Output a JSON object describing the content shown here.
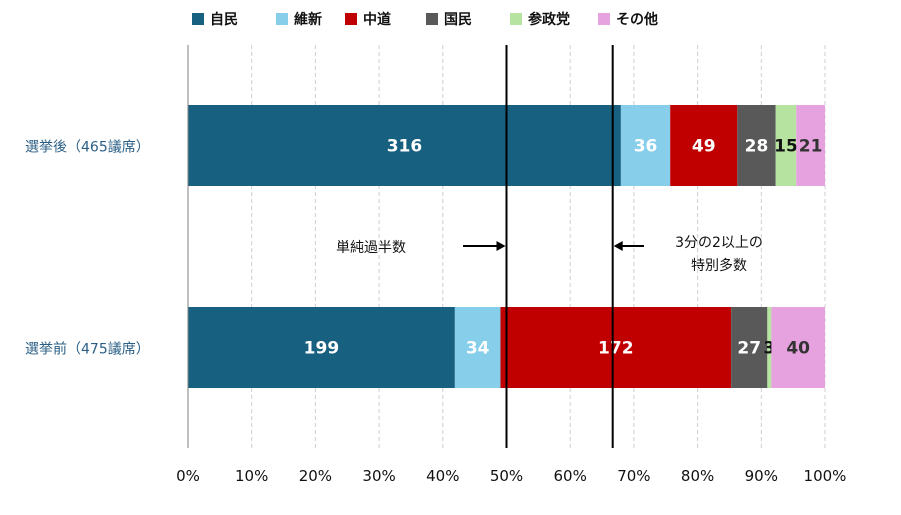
{
  "chart_data": {
    "type": "bar",
    "orientation": "horizontal",
    "stacked": true,
    "normalized": true,
    "categories": [
      "選挙後（465議席）",
      "選挙前（475議席）"
    ],
    "series": [
      {
        "name": "自民",
        "color": "#17607f",
        "values": [
          316,
          199
        ],
        "label_color": "#ffffff"
      },
      {
        "name": "維新",
        "color": "#87ceeb",
        "values": [
          36,
          34
        ],
        "label_color": "#ffffff"
      },
      {
        "name": "中道",
        "color": "#c00000",
        "values": [
          49,
          172
        ],
        "label_color": "#ffffff"
      },
      {
        "name": "国民",
        "color": "#595959",
        "values": [
          28,
          27
        ],
        "label_color": "#ffffff"
      },
      {
        "name": "参政党",
        "color": "#b6e3a0",
        "values": [
          15,
          3
        ],
        "label_color": "#111111"
      },
      {
        "name": "その他",
        "color": "#e6a1df",
        "values": [
          21,
          40
        ],
        "label_color": "#333333"
      }
    ],
    "x_ticks": [
      "0%",
      "10%",
      "20%",
      "30%",
      "40%",
      "50%",
      "60%",
      "70%",
      "80%",
      "90%",
      "100%"
    ],
    "xlim": [
      0,
      100
    ],
    "grid": true,
    "legend_position": "top",
    "reference_lines": [
      {
        "value": 50,
        "label": "単純過半数"
      },
      {
        "value": 66.67,
        "label_lines": [
          "3分の2以上の",
          "特別多数"
        ]
      }
    ]
  }
}
